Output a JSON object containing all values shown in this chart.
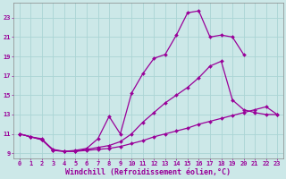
{
  "xlabel": "Windchill (Refroidissement éolien,°C)",
  "background_color": "#cce8e8",
  "grid_color": "#aad4d4",
  "line_color": "#990099",
  "xlim": [
    -0.5,
    23.5
  ],
  "ylim": [
    8.5,
    24.5
  ],
  "xticks": [
    0,
    1,
    2,
    3,
    4,
    5,
    6,
    7,
    8,
    9,
    10,
    11,
    12,
    13,
    14,
    15,
    16,
    17,
    18,
    19,
    20,
    21,
    22,
    23
  ],
  "yticks": [
    9,
    11,
    13,
    15,
    17,
    19,
    21,
    23
  ],
  "line1_x": [
    0,
    1,
    2,
    3,
    4,
    5,
    6,
    7,
    8,
    9,
    10,
    11,
    12,
    13,
    14,
    15,
    16,
    17,
    18,
    19,
    20
  ],
  "line1_y": [
    11.0,
    10.7,
    10.5,
    9.3,
    9.2,
    9.3,
    9.5,
    10.5,
    12.8,
    11.0,
    15.2,
    17.2,
    18.8,
    19.2,
    21.2,
    23.5,
    23.7,
    21.0,
    21.2,
    21.0,
    19.2
  ],
  "line2_x": [
    0,
    1,
    2,
    3,
    4,
    5,
    6,
    7,
    8,
    9,
    10,
    11,
    12,
    13,
    14,
    15,
    16,
    17,
    18,
    19,
    20,
    21,
    22,
    23
  ],
  "line2_y": [
    11.0,
    10.7,
    10.4,
    9.3,
    9.2,
    9.2,
    9.4,
    9.6,
    9.8,
    10.2,
    11.0,
    12.2,
    13.2,
    14.2,
    15.0,
    15.8,
    16.8,
    18.0,
    18.5,
    14.5,
    13.5,
    13.2,
    13.0,
    13.0
  ],
  "line3_x": [
    0,
    1,
    2,
    3,
    4,
    5,
    6,
    7,
    8,
    9,
    10,
    11,
    12,
    13,
    14,
    15,
    16,
    17,
    18,
    19,
    20,
    21,
    22,
    23
  ],
  "line3_y": [
    11.0,
    10.7,
    10.4,
    9.4,
    9.2,
    9.2,
    9.3,
    9.4,
    9.5,
    9.7,
    10.0,
    10.3,
    10.7,
    11.0,
    11.3,
    11.6,
    12.0,
    12.3,
    12.6,
    12.9,
    13.2,
    13.5,
    13.8,
    13.0
  ],
  "marker": "D",
  "markersize": 2.0,
  "linewidth": 0.9,
  "tick_fontsize": 5.0,
  "label_fontsize": 6.0
}
